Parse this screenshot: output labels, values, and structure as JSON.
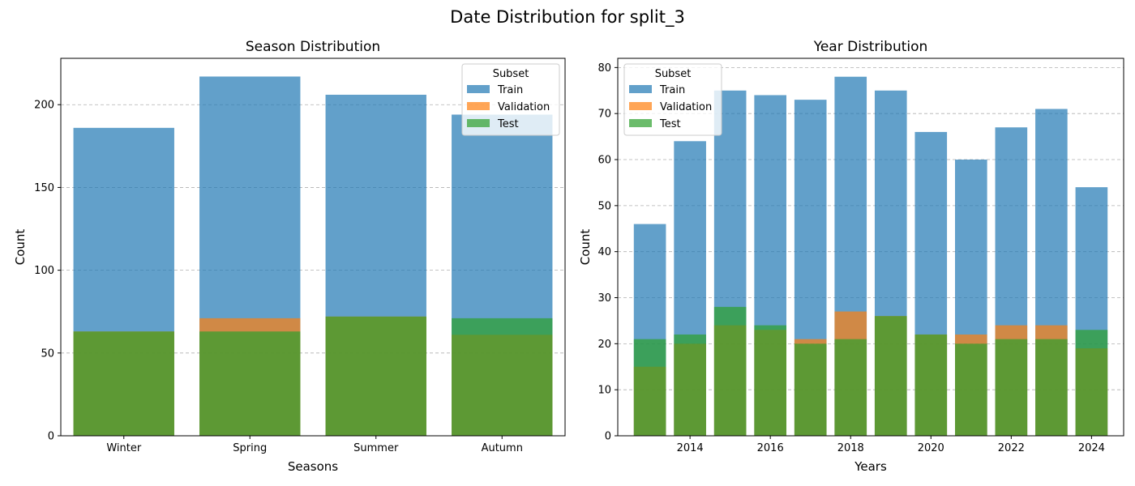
{
  "suptitle": "Date Distribution for split_3",
  "chart_data": [
    {
      "type": "bar",
      "title": "Season Distribution",
      "xlabel": "Seasons",
      "ylabel": "Count",
      "categories": [
        "Winter",
        "Spring",
        "Summer",
        "Autumn"
      ],
      "ylim": [
        0,
        228
      ],
      "yticks": [
        0,
        50,
        100,
        150,
        200
      ],
      "grid": "y",
      "legend": {
        "title": "Subset",
        "position": "top-right"
      },
      "series": [
        {
          "name": "Train",
          "color": "#1f77b4",
          "values": [
            186,
            217,
            206,
            194
          ]
        },
        {
          "name": "Validation",
          "color": "#ff7f0e",
          "values": [
            63,
            71,
            72,
            61
          ]
        },
        {
          "name": "Test",
          "color": "#2ca02c",
          "values": [
            63,
            63,
            72,
            71
          ]
        }
      ]
    },
    {
      "type": "bar",
      "title": "Year Distribution",
      "xlabel": "Years",
      "ylabel": "Count",
      "categories": [
        2013,
        2014,
        2015,
        2016,
        2017,
        2018,
        2019,
        2020,
        2021,
        2022,
        2023,
        2024
      ],
      "xlim": [
        2012.2,
        2024.8
      ],
      "xticks": [
        2014,
        2016,
        2018,
        2020,
        2022,
        2024
      ],
      "ylim": [
        0,
        82
      ],
      "yticks": [
        0,
        10,
        20,
        30,
        40,
        50,
        60,
        70,
        80
      ],
      "grid": "y",
      "legend": {
        "title": "Subset",
        "position": "top-left"
      },
      "series": [
        {
          "name": "Train",
          "color": "#1f77b4",
          "values": [
            46,
            64,
            75,
            74,
            73,
            78,
            75,
            66,
            60,
            67,
            71,
            54
          ]
        },
        {
          "name": "Validation",
          "color": "#ff7f0e",
          "values": [
            15,
            20,
            24,
            23,
            21,
            27,
            26,
            22,
            22,
            24,
            24,
            19
          ]
        },
        {
          "name": "Test",
          "color": "#2ca02c",
          "values": [
            21,
            22,
            28,
            24,
            20,
            21,
            26,
            22,
            20,
            21,
            21,
            23
          ]
        }
      ]
    }
  ]
}
